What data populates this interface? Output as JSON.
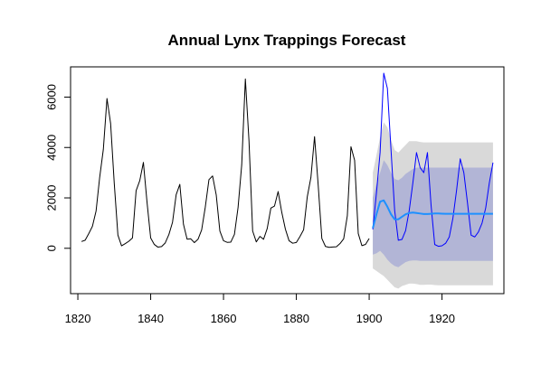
{
  "chart_data": {
    "type": "line",
    "title": "Annual Lynx Trappings Forecast",
    "xlabel": "",
    "ylabel": "",
    "xlim": [
      1818,
      1937
    ],
    "ylim": [
      -1800,
      7200
    ],
    "x_ticks": [
      1820,
      1840,
      1860,
      1880,
      1900,
      1920
    ],
    "y_ticks": [
      0,
      2000,
      4000,
      6000
    ],
    "x_tick_labels": [
      "1820",
      "1840",
      "1860",
      "1880",
      "1900",
      "1920"
    ],
    "y_tick_labels": [
      "0",
      "2000",
      "4000",
      "6000"
    ],
    "grid": false,
    "legend": "none",
    "colors": {
      "observed": "#000000",
      "simulated": "#0000ff",
      "forecast_mean": "#1e90ff",
      "band80": "#b2b5d6",
      "band95": "#d9d9d9"
    },
    "series": [
      {
        "id": "observed",
        "x": [
          1821,
          1822,
          1823,
          1824,
          1825,
          1826,
          1827,
          1828,
          1829,
          1830,
          1831,
          1832,
          1833,
          1834,
          1835,
          1836,
          1837,
          1838,
          1839,
          1840,
          1841,
          1842,
          1843,
          1844,
          1845,
          1846,
          1847,
          1848,
          1849,
          1850,
          1851,
          1852,
          1853,
          1854,
          1855,
          1856,
          1857,
          1858,
          1859,
          1860,
          1861,
          1862,
          1863,
          1864,
          1865,
          1866,
          1867,
          1868,
          1869,
          1870,
          1871,
          1872,
          1873,
          1874,
          1875,
          1876,
          1877,
          1878,
          1879,
          1880,
          1881,
          1882,
          1883,
          1884,
          1885,
          1886,
          1887,
          1888,
          1889,
          1890,
          1891,
          1892,
          1893,
          1894,
          1895,
          1896,
          1897,
          1898,
          1899,
          1900
        ],
        "values": [
          269,
          321,
          585,
          871,
          1475,
          2821,
          3928,
          5943,
          4950,
          2577,
          523,
          98,
          184,
          279,
          409,
          2285,
          2685,
          3409,
          1824,
          409,
          151,
          45,
          68,
          213,
          546,
          1033,
          2129,
          2536,
          957,
          361,
          377,
          225,
          360,
          731,
          1638,
          2725,
          2871,
          2119,
          684,
          299,
          236,
          245,
          552,
          1623,
          3311,
          6721,
          4254,
          687,
          255,
          473,
          358,
          784,
          1594,
          1676,
          2251,
          1426,
          756,
          299,
          201,
          229,
          469,
          736,
          2042,
          2811,
          4431,
          2511,
          389,
          73,
          39,
          49,
          59,
          188,
          377,
          1292,
          4031,
          3495,
          587,
          105,
          153,
          387
        ]
      },
      {
        "id": "simulated",
        "x": [
          1901,
          1902,
          1903,
          1904,
          1905,
          1906,
          1907,
          1908,
          1909,
          1910,
          1911,
          1912,
          1913,
          1914,
          1915,
          1916,
          1917,
          1918,
          1919,
          1920,
          1921,
          1922,
          1923,
          1924,
          1925,
          1926,
          1927,
          1928,
          1929,
          1930,
          1931,
          1932,
          1933,
          1934
        ],
        "values": [
          750,
          2200,
          3800,
          6950,
          6350,
          3900,
          1500,
          320,
          350,
          700,
          1500,
          2600,
          3800,
          3200,
          3000,
          3800,
          1700,
          150,
          80,
          100,
          200,
          450,
          1200,
          2300,
          3550,
          3000,
          1800,
          520,
          450,
          650,
          1000,
          1600,
          2600,
          3400
        ]
      },
      {
        "id": "forecast_mean",
        "x": [
          1901,
          1902,
          1903,
          1904,
          1905,
          1906,
          1907,
          1908,
          1909,
          1910,
          1911,
          1912,
          1913,
          1914,
          1915,
          1916,
          1917,
          1918,
          1919,
          1920,
          1921,
          1922,
          1923,
          1924,
          1925,
          1926,
          1927,
          1928,
          1929,
          1930,
          1931,
          1932,
          1933,
          1934
        ],
        "values": [
          800,
          1350,
          1850,
          1900,
          1650,
          1350,
          1150,
          1150,
          1250,
          1350,
          1400,
          1420,
          1400,
          1380,
          1360,
          1360,
          1370,
          1380,
          1380,
          1375,
          1370,
          1370,
          1370,
          1370,
          1370,
          1370,
          1370,
          1370,
          1370,
          1370,
          1370,
          1370,
          1370,
          1370
        ]
      }
    ],
    "bands": [
      {
        "id": "band95",
        "x": [
          1901,
          1902,
          1903,
          1904,
          1905,
          1906,
          1907,
          1908,
          1909,
          1910,
          1911,
          1912,
          1913,
          1914,
          1915,
          1916,
          1917,
          1918,
          1919,
          1920,
          1934
        ],
        "lower": [
          -800,
          -900,
          -1000,
          -1100,
          -1250,
          -1400,
          -1550,
          -1600,
          -1500,
          -1450,
          -1400,
          -1400,
          -1420,
          -1450,
          -1450,
          -1440,
          -1440,
          -1460,
          -1470,
          -1470,
          -1470
        ],
        "upper": [
          3000,
          3700,
          4400,
          5000,
          4800,
          4300,
          3900,
          3800,
          3950,
          4100,
          4250,
          4250,
          4250,
          4220,
          4200,
          4200,
          4200,
          4200,
          4200,
          4200,
          4200
        ]
      },
      {
        "id": "band80",
        "x": [
          1901,
          1902,
          1903,
          1904,
          1905,
          1906,
          1907,
          1908,
          1909,
          1910,
          1911,
          1912,
          1913,
          1914,
          1915,
          1916,
          1917,
          1918,
          1919,
          1920,
          1934
        ],
        "lower": [
          -250,
          -200,
          -100,
          -250,
          -450,
          -600,
          -700,
          -750,
          -650,
          -550,
          -500,
          -480,
          -480,
          -500,
          -500,
          -500,
          -500,
          -500,
          -500,
          -500,
          -500
        ],
        "upper": [
          2000,
          2550,
          3000,
          3500,
          3300,
          3000,
          2750,
          2700,
          2800,
          2950,
          3050,
          3150,
          3200,
          3200,
          3200,
          3200,
          3200,
          3200,
          3200,
          3200,
          3200
        ]
      }
    ]
  }
}
